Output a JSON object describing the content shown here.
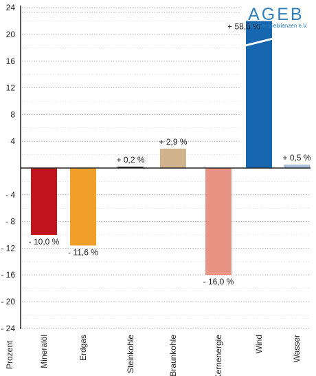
{
  "logo": {
    "name": "AGEB",
    "subtitle": "AG Energiebilanzen e.V."
  },
  "chart_data": {
    "type": "bar",
    "title": "",
    "xlabel": "",
    "ylabel": "Prozent",
    "categories": [
      "Mineralöl",
      "Erdgas",
      "Steinkohle",
      "Braunkohle",
      "Kernenergie",
      "Wind",
      "Wasser"
    ],
    "values": [
      -10.0,
      -11.6,
      0.2,
      2.9,
      -16.0,
      58.0,
      0.5
    ],
    "data_labels": [
      "- 10,0 %",
      "- 11,6 %",
      "+ 0,2 %",
      "+ 2,9 %",
      "- 16,0 %",
      "+ 58,0 %",
      "+ 0,5 %"
    ],
    "colors": [
      "#c0141c",
      "#f0a02a",
      "#151515",
      "#d1b48b",
      "#e89484",
      "#1666b0",
      "#a7bfdc"
    ],
    "y_ticks_positive": [
      24,
      20,
      16,
      12,
      8,
      4
    ],
    "y_ticks_negative": [
      "- 4",
      "- 8",
      "- 12",
      "- 16",
      "- 20",
      "- 24"
    ],
    "ylim": [
      -24,
      24
    ],
    "axis_break": "Wind",
    "grid": true
  }
}
